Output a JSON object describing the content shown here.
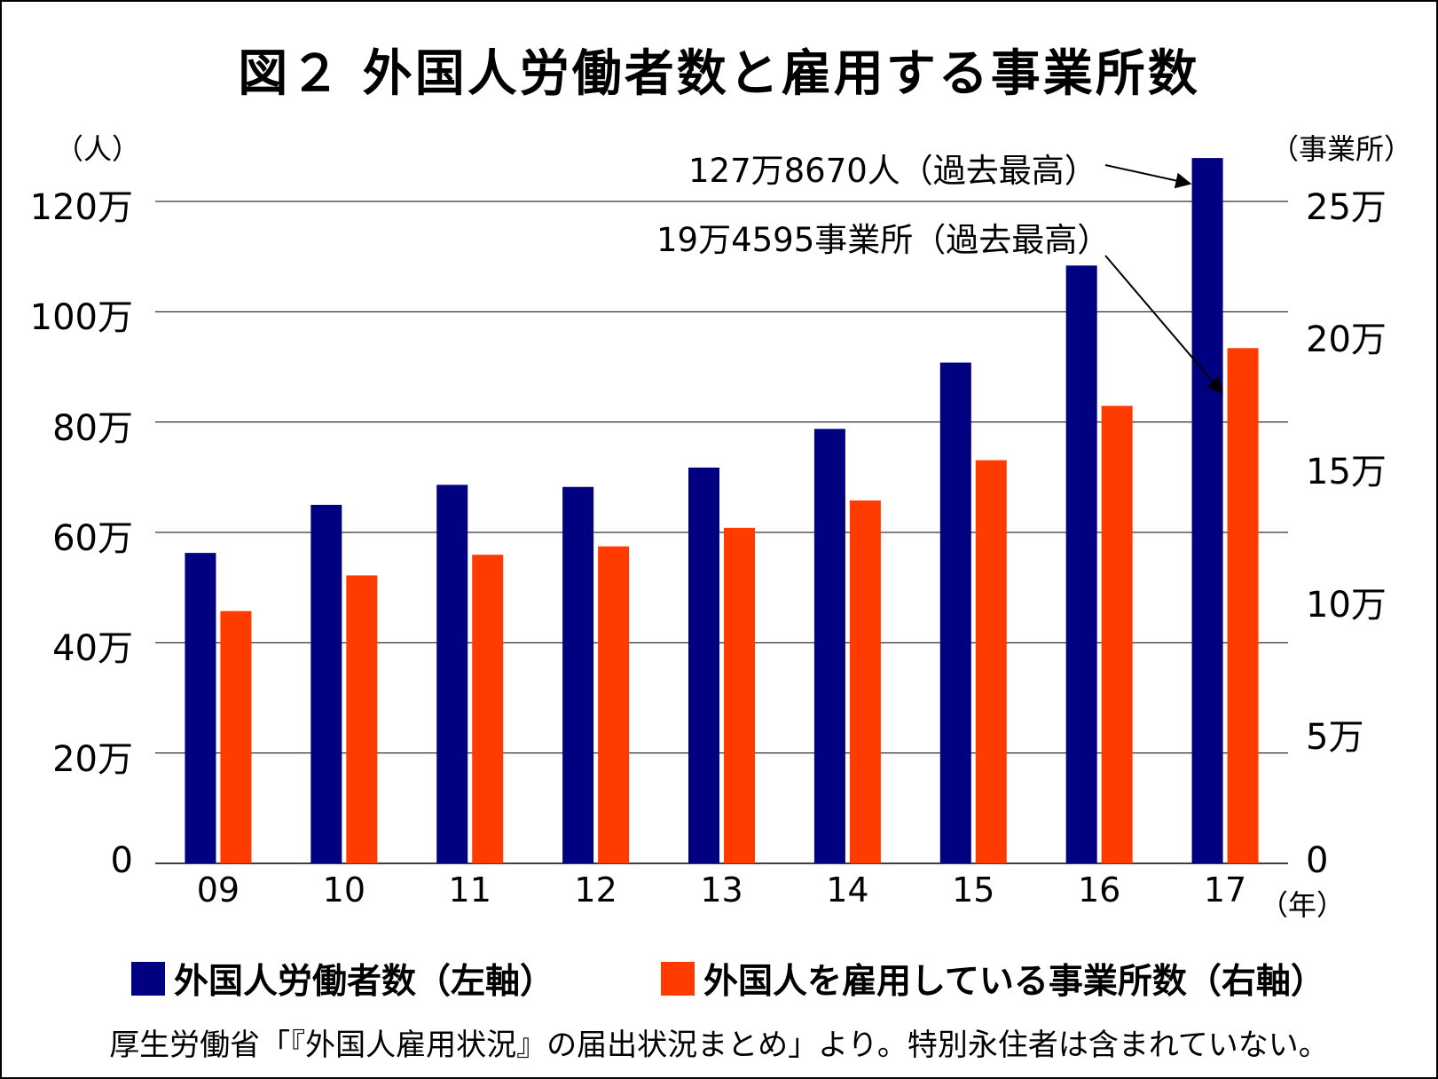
{
  "chart_data": {
    "type": "bar",
    "title": "図２ 外国人労働者数と雇用する事業所数",
    "left_axis_unit": "（人）",
    "right_axis_unit": "（事業所）",
    "x_unit": "（年）",
    "categories": [
      "09",
      "10",
      "11",
      "12",
      "13",
      "14",
      "15",
      "16",
      "17"
    ],
    "left_ticks": [
      "0",
      "20万",
      "40万",
      "60万",
      "80万",
      "100万",
      "120万"
    ],
    "right_ticks": [
      "0",
      "5万",
      "10万",
      "15万",
      "20万",
      "25万"
    ],
    "left_ylim": [
      0,
      1200000
    ],
    "right_ylim": [
      0,
      250000
    ],
    "grid": true,
    "series": [
      {
        "name": "外国人労働者数（左軸）",
        "axis": "left",
        "color": "#000080",
        "values": [
          562818,
          649982,
          686246,
          682450,
          717504,
          787627,
          907896,
          1083769,
          1278670
        ]
      },
      {
        "name": "外国人を雇用している事業所数（右軸）",
        "axis": "right",
        "color": "#ff3b00",
        "values": [
          95294,
          108760,
          116561,
          119731,
          126729,
          137053,
          152261,
          172798,
          194595
        ]
      }
    ],
    "annotations": [
      {
        "text": "127万8670人（過去最高）",
        "series": 0,
        "index": 8
      },
      {
        "text": "19万4595事業所（過去最高）",
        "series": 1,
        "index": 8
      }
    ],
    "legend_position": "bottom"
  },
  "source": "厚生労働省「『外国人雇用状況』の届出状況まとめ」より。特別永住者は含まれていない。"
}
